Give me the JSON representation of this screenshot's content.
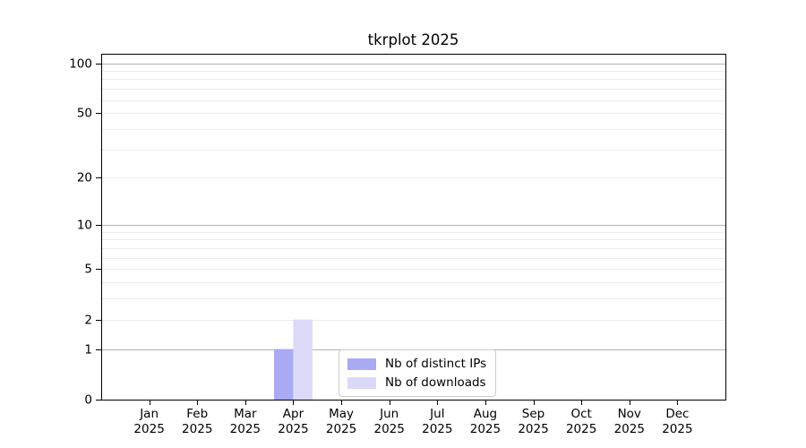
{
  "chart_data": {
    "type": "bar",
    "title": "tkrplot 2025",
    "x_year": "2025",
    "categories": [
      "Jan",
      "Feb",
      "Mar",
      "Apr",
      "May",
      "Jun",
      "Jul",
      "Aug",
      "Sep",
      "Oct",
      "Nov",
      "Dec"
    ],
    "series": [
      {
        "name": "Nb of distinct IPs",
        "color": "#a9a9f4",
        "values": [
          0,
          0,
          0,
          1,
          0,
          0,
          0,
          0,
          0,
          0,
          0,
          0
        ]
      },
      {
        "name": "Nb of downloads",
        "color": "#dadaf8",
        "values": [
          0,
          0,
          0,
          2,
          0,
          0,
          0,
          0,
          0,
          0,
          0,
          0
        ]
      }
    ],
    "y_scale": "log1p",
    "ylim": [
      0,
      114
    ],
    "y_major_ticks": [
      0,
      1,
      2,
      5,
      10,
      20,
      50,
      100
    ],
    "y_minor_gridlines": [
      3,
      4,
      6,
      7,
      8,
      9,
      30,
      40,
      60,
      70,
      80,
      90
    ],
    "y_decade_gridlines": [
      1,
      10,
      100
    ],
    "grid": "horizontal",
    "legend_position": "lower center",
    "colors": {
      "decade_gridline": "#b3b3b3",
      "gridline": "#ececec",
      "axis": "#000000",
      "legend_border": "#cccccc",
      "background": "#ffffff"
    }
  }
}
